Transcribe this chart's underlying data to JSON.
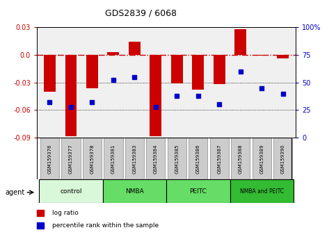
{
  "title": "GDS2839 / 6068",
  "samples": [
    "GSM159376",
    "GSM159377",
    "GSM159378",
    "GSM159381",
    "GSM159383",
    "GSM159384",
    "GSM159385",
    "GSM159386",
    "GSM159387",
    "GSM159388",
    "GSM159389",
    "GSM159390"
  ],
  "log_ratios": [
    -0.04,
    -0.088,
    -0.036,
    0.003,
    0.014,
    -0.088,
    -0.031,
    -0.038,
    -0.032,
    0.028,
    -0.001,
    -0.004
  ],
  "percentile_ranks": [
    32,
    28,
    32,
    52,
    55,
    28,
    38,
    38,
    30,
    60,
    45,
    40
  ],
  "ylim_left": [
    -0.09,
    0.03
  ],
  "ylim_right": [
    0,
    100
  ],
  "yticks_left": [
    -0.09,
    -0.06,
    -0.03,
    0.0,
    0.03
  ],
  "yticks_right": [
    0,
    25,
    50,
    75,
    100
  ],
  "bar_color": "#cc0000",
  "dot_color": "#0000cc",
  "hline_color": "#cc0000",
  "plot_bg": "#f0f0f0",
  "bar_width": 0.55,
  "groups": [
    {
      "start": 0,
      "end": 2,
      "label": "control",
      "color": "#d9f7d9"
    },
    {
      "start": 3,
      "end": 5,
      "label": "NMBA",
      "color": "#66dd66"
    },
    {
      "start": 6,
      "end": 8,
      "label": "PEITC",
      "color": "#66dd66"
    },
    {
      "start": 9,
      "end": 11,
      "label": "NMBA and PEITC",
      "color": "#33bb33"
    }
  ],
  "legend_items": [
    {
      "label": "log ratio",
      "color": "#cc0000"
    },
    {
      "label": "percentile rank within the sample",
      "color": "#0000cc"
    }
  ]
}
